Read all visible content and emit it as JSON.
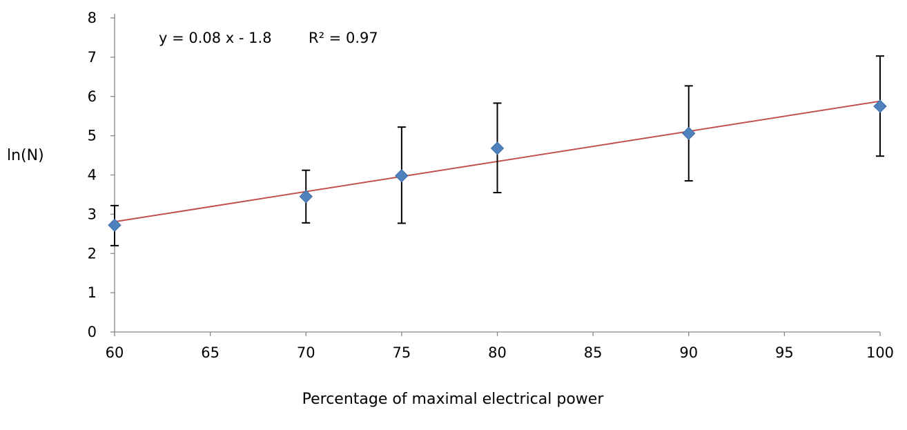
{
  "chart_data": {
    "type": "scatter",
    "title": "",
    "xlabel": "Percentage of maximal electrical power",
    "ylabel": "ln(N)",
    "xlim": [
      60,
      100
    ],
    "ylim": [
      0,
      8
    ],
    "x_ticks": [
      60,
      65,
      70,
      75,
      80,
      85,
      90,
      95,
      100
    ],
    "y_ticks": [
      0,
      1,
      2,
      3,
      4,
      5,
      6,
      7,
      8
    ],
    "grid": false,
    "legend": "none",
    "series": [
      {
        "x": [
          60,
          70,
          75,
          80,
          90,
          100
        ],
        "y": [
          2.72,
          3.45,
          3.98,
          4.68,
          5.06,
          5.75
        ],
        "error_low": [
          2.2,
          2.78,
          2.77,
          3.55,
          3.85,
          4.48
        ],
        "error_high": [
          3.22,
          4.12,
          5.22,
          5.83,
          6.27,
          7.03
        ],
        "color": "#4f81bd",
        "marker": "diamond"
      }
    ],
    "trendline": {
      "slope": 0.0768,
      "intercept": -1.8,
      "color": "#c0504d",
      "equation_label": "y = 0.08 x - 1.8",
      "r2_label": "R² = 0.97"
    }
  }
}
